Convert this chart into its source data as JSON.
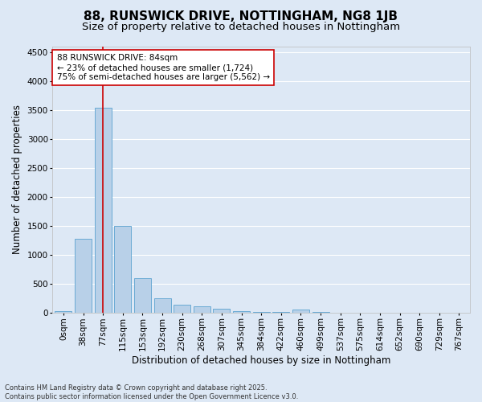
{
  "title": "88, RUNSWICK DRIVE, NOTTINGHAM, NG8 1JB",
  "subtitle": "Size of property relative to detached houses in Nottingham",
  "xlabel": "Distribution of detached houses by size in Nottingham",
  "ylabel": "Number of detached properties",
  "bar_labels": [
    "0sqm",
    "38sqm",
    "77sqm",
    "115sqm",
    "153sqm",
    "192sqm",
    "230sqm",
    "268sqm",
    "307sqm",
    "345sqm",
    "384sqm",
    "422sqm",
    "460sqm",
    "499sqm",
    "537sqm",
    "575sqm",
    "614sqm",
    "652sqm",
    "690sqm",
    "729sqm",
    "767sqm"
  ],
  "bar_values": [
    30,
    1275,
    3540,
    1490,
    600,
    250,
    135,
    110,
    70,
    25,
    15,
    5,
    50,
    5,
    0,
    0,
    0,
    0,
    0,
    0,
    0
  ],
  "bar_color": "#b8d0e8",
  "bar_edge_color": "#6aaad4",
  "background_color": "#dde8f5",
  "plot_bg_color": "#dde8f5",
  "grid_color": "#ffffff",
  "ylim": [
    0,
    4600
  ],
  "yticks": [
    0,
    500,
    1000,
    1500,
    2000,
    2500,
    3000,
    3500,
    4000,
    4500
  ],
  "vline_x": 2,
  "vline_color": "#cc0000",
  "annotation_text": "88 RUNSWICK DRIVE: 84sqm\n← 23% of detached houses are smaller (1,724)\n75% of semi-detached houses are larger (5,562) →",
  "annotation_box_facecolor": "#ffffff",
  "annotation_box_edgecolor": "#cc0000",
  "footer_line1": "Contains HM Land Registry data © Crown copyright and database right 2025.",
  "footer_line2": "Contains public sector information licensed under the Open Government Licence v3.0.",
  "title_fontsize": 11,
  "subtitle_fontsize": 9.5,
  "axis_label_fontsize": 8.5,
  "tick_fontsize": 7.5,
  "annotation_fontsize": 7.5,
  "footer_fontsize": 6
}
